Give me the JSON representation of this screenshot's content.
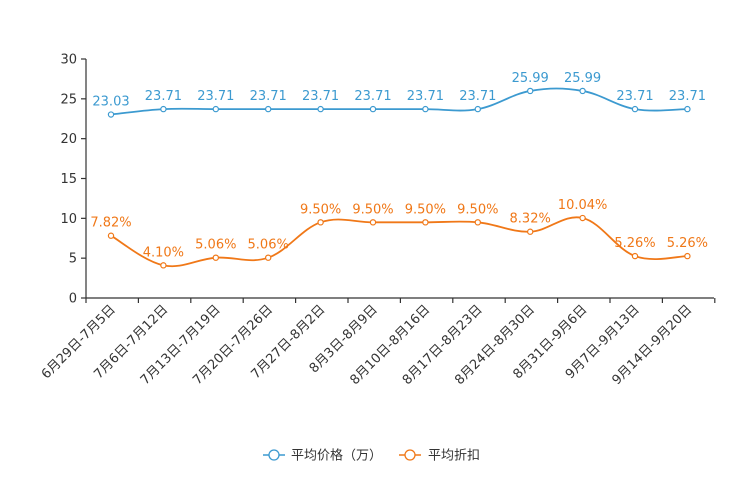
{
  "chart_data": {
    "type": "line",
    "title": "",
    "xlabel": "",
    "ylabel": "",
    "ylim": [
      0,
      30
    ],
    "yticks": [
      0,
      5,
      10,
      15,
      20,
      25,
      30
    ],
    "grid": false,
    "legend_position": "bottom-center",
    "categories": [
      "6月29日-7月5日",
      "7月6日-7月12日",
      "7月13日-7月19日",
      "7月20日-7月26日",
      "7月27日-8月2日",
      "8月3日-8月9日",
      "8月10日-8月16日",
      "8月17日-8月23日",
      "8月24日-8月30日",
      "8月31日-9月6日",
      "9月7日-9月13日",
      "9月14日-9月20日"
    ],
    "series": [
      {
        "name": "平均价格（万）",
        "color": "#3c9ad0",
        "values": [
          23.03,
          23.71,
          23.71,
          23.71,
          23.71,
          23.71,
          23.71,
          23.71,
          25.99,
          25.99,
          23.71,
          23.71
        ],
        "labels": [
          "23.03",
          "23.71",
          "23.71",
          "23.71",
          "23.71",
          "23.71",
          "23.71",
          "23.71",
          "25.99",
          "25.99",
          "23.71",
          "23.71"
        ]
      },
      {
        "name": "平均折扣",
        "color": "#f07818",
        "values": [
          7.82,
          4.1,
          5.06,
          5.06,
          9.5,
          9.5,
          9.5,
          9.5,
          8.32,
          10.04,
          5.26,
          5.26
        ],
        "labels": [
          "7.82%",
          "4.10%",
          "5.06%",
          "5.06%",
          "9.50%",
          "9.50%",
          "9.50%",
          "9.50%",
          "8.32%",
          "10.04%",
          "5.26%",
          "5.26%"
        ]
      }
    ]
  }
}
